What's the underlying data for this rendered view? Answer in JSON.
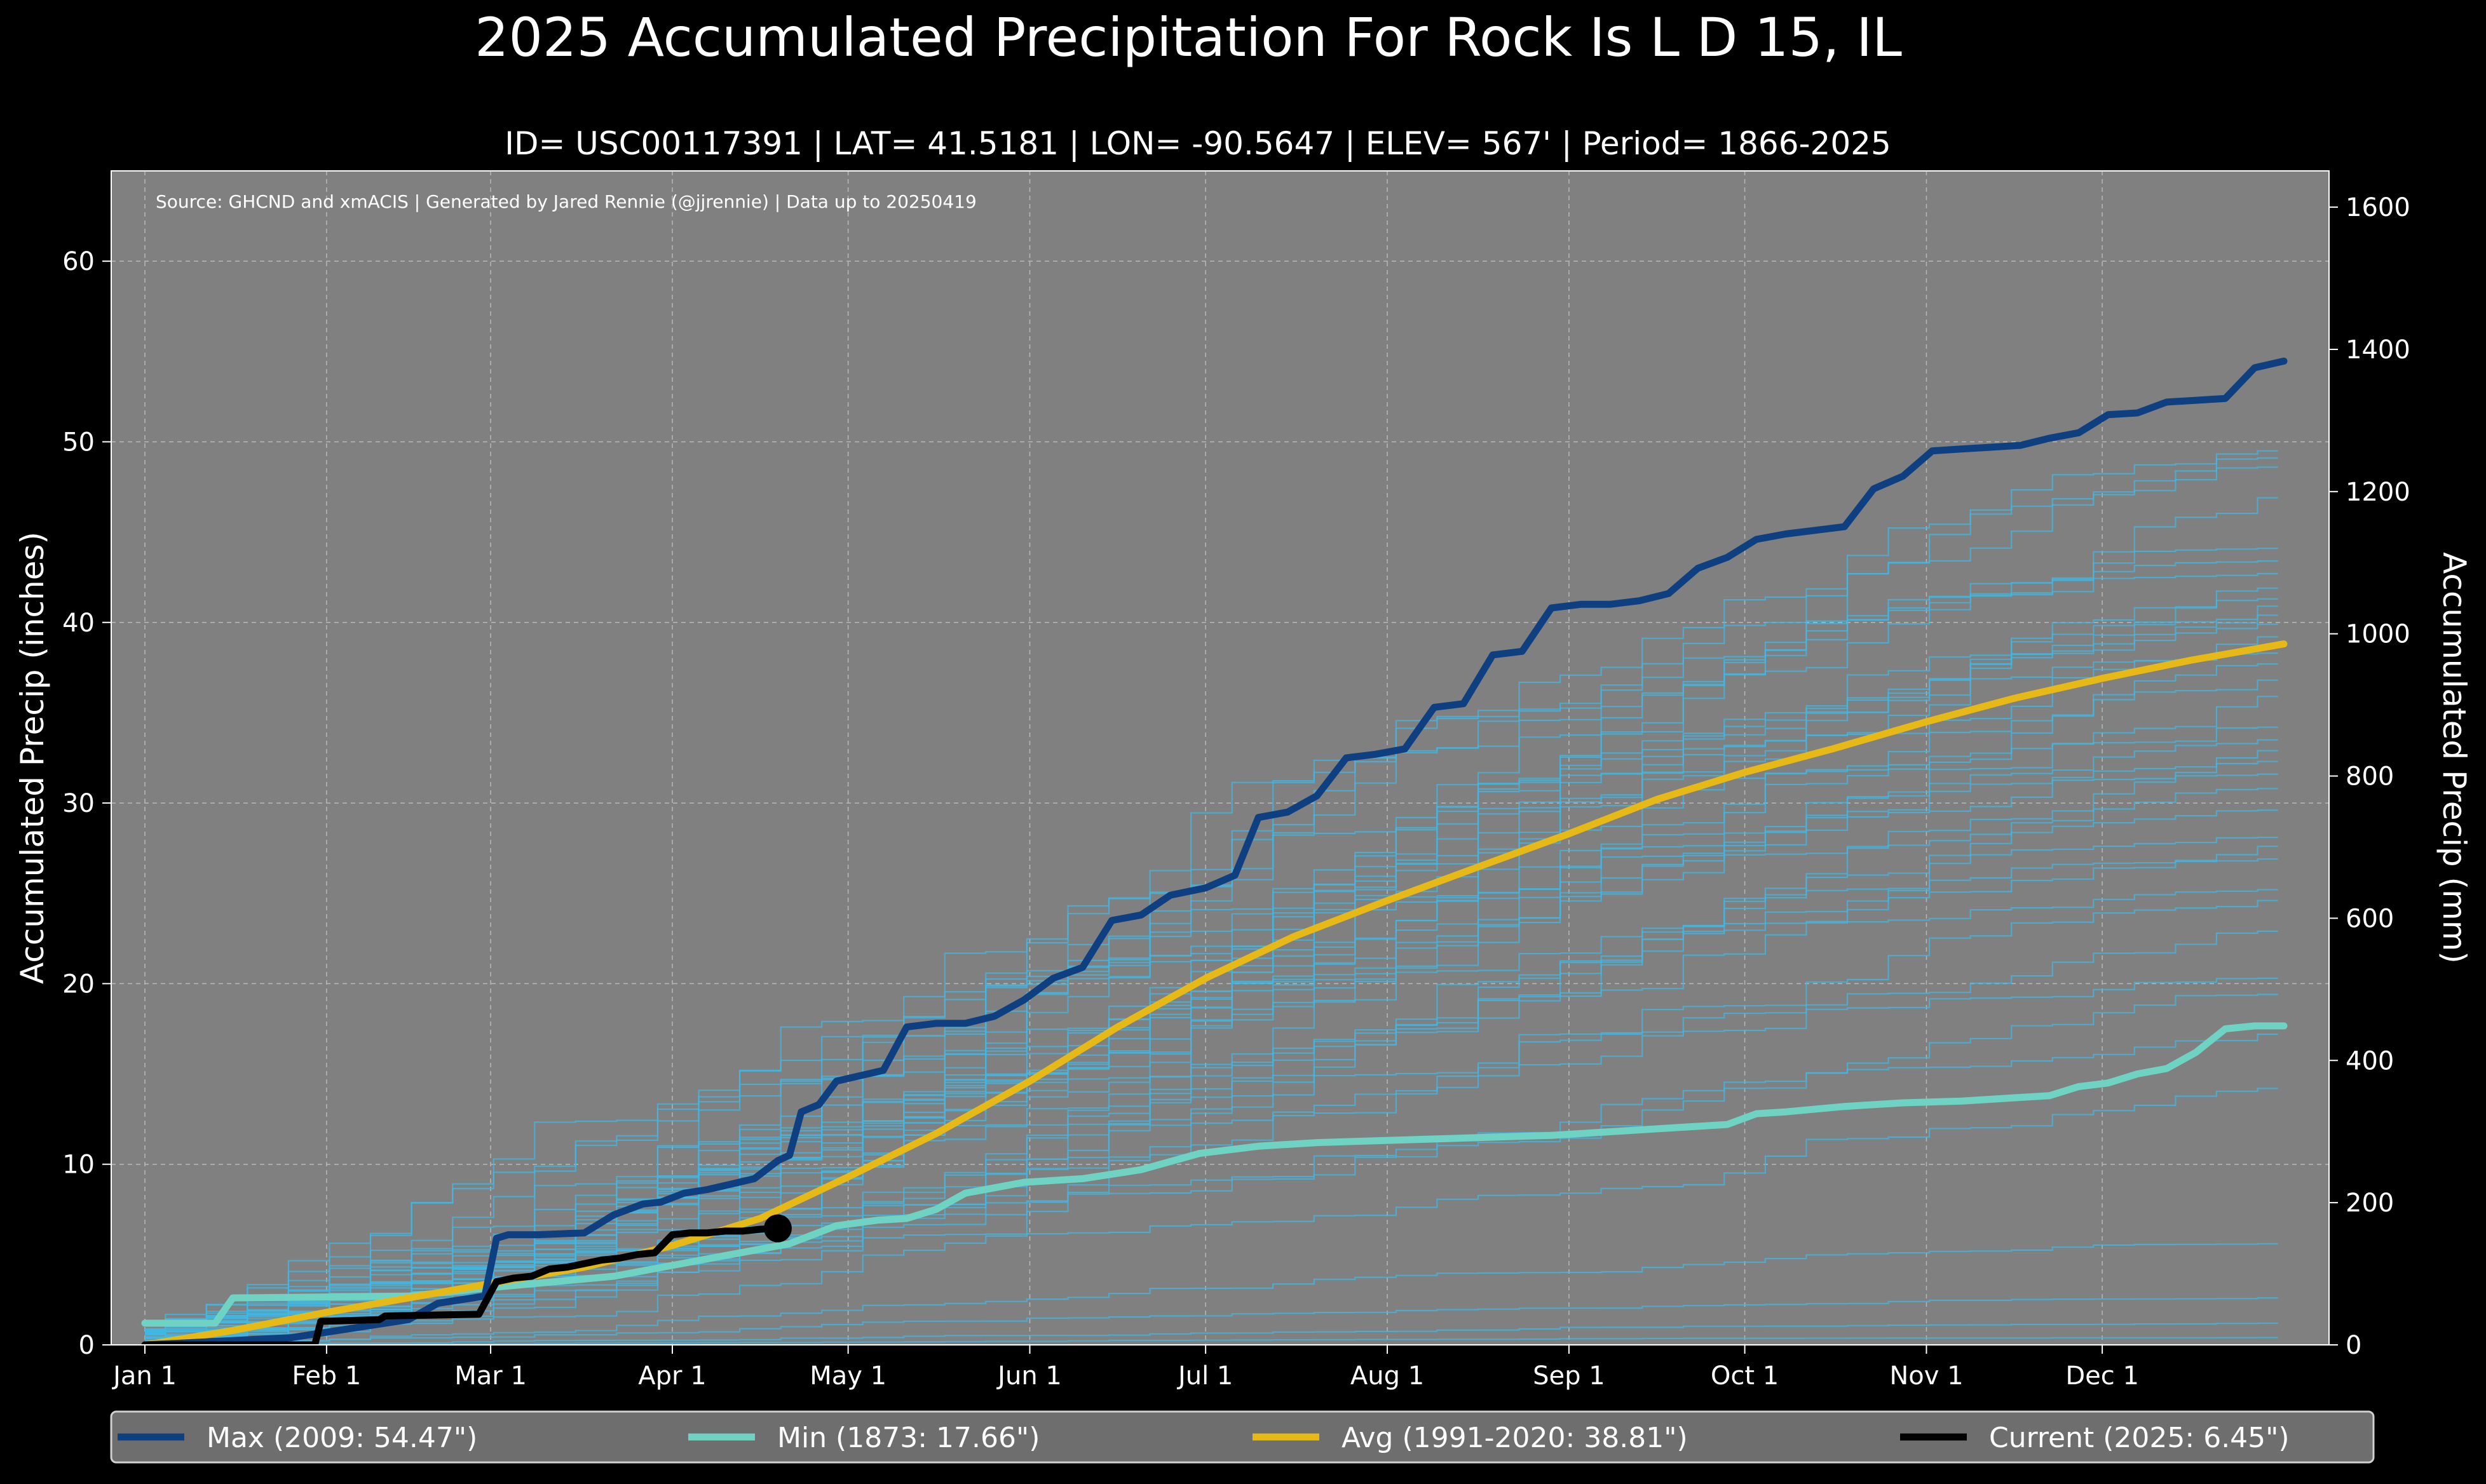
{
  "chart_data": {
    "type": "line",
    "title": "2025 Accumulated Precipitation For Rock Is L D 15, IL",
    "subtitle": "ID= USC00117391 | LAT= 41.5181 | LON= -90.5647 | ELEV= 567' | Period= 1866-2025",
    "source_note": "Source: GHCND and xmACIS | Generated by Jared Rennie (@jjrennie) | Data up to 20250419",
    "ylabel_left": "Accumulated Precip (inches)",
    "ylabel_right": "Accumulated Precip (mm)",
    "xlim": [
      0,
      365
    ],
    "ylim_left": [
      0,
      65
    ],
    "ylim_right": [
      0,
      1651
    ],
    "grid": true,
    "x_ticks": [
      {
        "day": 0,
        "label": "Jan 1"
      },
      {
        "day": 31,
        "label": "Feb 1"
      },
      {
        "day": 59,
        "label": "Mar 1"
      },
      {
        "day": 90,
        "label": "Apr 1"
      },
      {
        "day": 120,
        "label": "May 1"
      },
      {
        "day": 151,
        "label": "Jun 1"
      },
      {
        "day": 181,
        "label": "Jul 1"
      },
      {
        "day": 212,
        "label": "Aug 1"
      },
      {
        "day": 243,
        "label": "Sep 1"
      },
      {
        "day": 273,
        "label": "Oct 1"
      },
      {
        "day": 304,
        "label": "Nov 1"
      },
      {
        "day": 334,
        "label": "Dec 1"
      }
    ],
    "y_ticks_left": [
      0,
      10,
      20,
      30,
      40,
      50,
      60
    ],
    "y_ticks_right": [
      0,
      200,
      400,
      600,
      800,
      1000,
      1200,
      1400,
      1600
    ],
    "historical_years": {
      "color": "#3fb8e6",
      "final_totals": [
        49.5,
        49.1,
        48.6,
        46.9,
        44.1,
        43.4,
        42.7,
        41.9,
        41.3,
        40.9,
        40.4,
        39.9,
        39.2,
        38.3,
        37.7,
        36.8,
        35.9,
        34.2,
        33.5,
        32.9,
        32.3,
        31.6,
        30.8,
        29.6,
        28.1,
        27.6,
        26.9,
        25.2,
        24.6,
        22.9,
        20.3,
        19.4,
        17.2,
        14.2,
        5.6,
        2.6,
        1.2,
        0.4
      ]
    },
    "series": [
      {
        "name": "Max",
        "legend": "Max (2009:  54.47\")",
        "color": "#0e3f80",
        "x": [
          0,
          25,
          31,
          45,
          50,
          58,
          60,
          62,
          67,
          75,
          80,
          85,
          88,
          92,
          96,
          100,
          104,
          108,
          110,
          112,
          115,
          118,
          122,
          126,
          130,
          135,
          140,
          145,
          150,
          155,
          160,
          165,
          170,
          175,
          181,
          186,
          190,
          195,
          200,
          205,
          210,
          215,
          220,
          225,
          230,
          235,
          240,
          245,
          250,
          255,
          260,
          265,
          270,
          275,
          280,
          285,
          290,
          295,
          300,
          305,
          310,
          315,
          320,
          325,
          330,
          335,
          340,
          345,
          350,
          355,
          360,
          365
        ],
        "values": [
          0.0,
          0.4,
          0.7,
          1.4,
          2.3,
          2.7,
          5.9,
          6.1,
          6.1,
          6.2,
          7.2,
          7.8,
          7.9,
          8.4,
          8.6,
          8.9,
          9.2,
          10.2,
          10.5,
          12.9,
          13.3,
          14.6,
          14.9,
          15.2,
          17.6,
          17.8,
          17.8,
          18.2,
          19.1,
          20.3,
          20.9,
          23.5,
          23.8,
          24.9,
          25.3,
          26.0,
          29.2,
          29.5,
          30.4,
          32.5,
          32.7,
          33.0,
          35.3,
          35.5,
          38.2,
          38.4,
          40.8,
          41.0,
          41.0,
          41.2,
          41.6,
          43.0,
          43.6,
          44.6,
          44.9,
          45.1,
          45.3,
          47.4,
          48.1,
          49.5,
          49.6,
          49.7,
          49.8,
          50.2,
          50.5,
          51.5,
          51.6,
          52.2,
          52.3,
          52.4,
          54.1,
          54.47
        ]
      },
      {
        "name": "Min",
        "legend": "Min (1873:  17.66\")",
        "color": "#6fd3c4",
        "x": [
          0,
          12,
          15,
          45,
          60,
          70,
          80,
          90,
          100,
          110,
          118,
          125,
          130,
          135,
          140,
          145,
          150,
          160,
          170,
          180,
          190,
          200,
          210,
          220,
          230,
          240,
          250,
          260,
          270,
          275,
          280,
          290,
          300,
          310,
          320,
          325,
          330,
          335,
          340,
          345,
          350,
          355,
          360,
          365
        ],
        "values": [
          1.2,
          1.2,
          2.6,
          2.7,
          3.2,
          3.5,
          3.8,
          4.4,
          5.0,
          5.6,
          6.6,
          6.9,
          7.0,
          7.5,
          8.4,
          8.7,
          9.0,
          9.2,
          9.7,
          10.6,
          11.0,
          11.2,
          11.3,
          11.4,
          11.5,
          11.6,
          11.8,
          12.0,
          12.2,
          12.8,
          12.9,
          13.2,
          13.4,
          13.5,
          13.7,
          13.8,
          14.3,
          14.5,
          15.0,
          15.3,
          16.2,
          17.5,
          17.66,
          17.66
        ]
      },
      {
        "name": "Avg",
        "legend": "Avg (1991-2020:  38.81\")",
        "color": "#e6b917",
        "x": [
          0,
          15,
          31,
          45,
          59,
          75,
          90,
          105,
          120,
          135,
          151,
          166,
          181,
          196,
          212,
          227,
          243,
          258,
          273,
          288,
          304,
          319,
          334,
          349,
          365
        ],
        "values": [
          0.0,
          0.8,
          1.8,
          2.6,
          3.4,
          4.3,
          5.5,
          7.0,
          9.3,
          11.7,
          14.6,
          17.6,
          20.3,
          22.6,
          24.6,
          26.4,
          28.3,
          30.2,
          31.7,
          33.0,
          34.5,
          35.8,
          36.9,
          37.9,
          38.81
        ]
      },
      {
        "name": "Current",
        "legend": "Current (2025:   6.45\")",
        "color": "#000000",
        "x": [
          0,
          29,
          30,
          40,
          41,
          57,
          60,
          63,
          66,
          69,
          72,
          75,
          78,
          81,
          84,
          87,
          90,
          93,
          96,
          99,
          102,
          105,
          108
        ],
        "values": [
          0.0,
          0.0,
          1.3,
          1.4,
          1.6,
          1.7,
          3.5,
          3.7,
          3.8,
          4.2,
          4.3,
          4.5,
          4.7,
          4.8,
          5.0,
          5.1,
          6.1,
          6.2,
          6.2,
          6.3,
          6.3,
          6.4,
          6.45
        ]
      }
    ],
    "legend_placement": "bottom"
  }
}
